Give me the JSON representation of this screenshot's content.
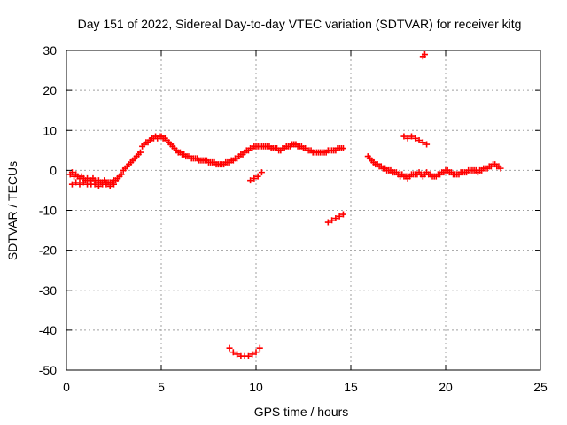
{
  "chart_data": {
    "type": "scatter",
    "title": "Day 151 of 2022, Sidereal Day-to-day VTEC variation (SDTVAR) for receiver kitg",
    "xlabel": "GPS time / hours",
    "ylabel": "SDTVAR / TECUs",
    "xlim": [
      0,
      25
    ],
    "ylim": [
      -50,
      30
    ],
    "xticks": [
      0,
      5,
      10,
      15,
      20,
      25
    ],
    "yticks": [
      -50,
      -40,
      -30,
      -20,
      -10,
      0,
      10,
      20,
      30
    ],
    "grid": true,
    "marker": "plus",
    "color": "#ff0000",
    "series": [
      {
        "name": "SDTVAR",
        "x": [
          0.2,
          0.3,
          0.4,
          0.5,
          0.6,
          0.7,
          0.8,
          0.9,
          1.0,
          1.1,
          1.2,
          1.3,
          1.4,
          1.5,
          1.6,
          1.7,
          1.8,
          1.9,
          2.0,
          2.1,
          2.2,
          2.3,
          2.4,
          2.5,
          2.6,
          2.7,
          2.8,
          2.9,
          3.0,
          3.1,
          3.2,
          3.3,
          3.4,
          3.5,
          3.6,
          3.7,
          3.8,
          3.9,
          4.0,
          4.1,
          4.2,
          4.3,
          4.4,
          4.5,
          4.6,
          4.7,
          4.8,
          4.9,
          5.0,
          5.1,
          5.2,
          5.3,
          5.4,
          5.5,
          5.6,
          5.7,
          5.8,
          5.9,
          6.0,
          6.1,
          6.2,
          6.3,
          6.4,
          6.5,
          6.6,
          6.7,
          6.8,
          6.9,
          7.0,
          7.1,
          7.2,
          7.3,
          7.4,
          7.5,
          7.6,
          7.7,
          7.8,
          7.9,
          8.0,
          8.1,
          8.2,
          8.3,
          8.4,
          8.5,
          8.6,
          8.7,
          8.8,
          8.9,
          9.0,
          9.1,
          9.2,
          9.3,
          9.4,
          9.5,
          9.6,
          9.7,
          9.8,
          9.9,
          10.0,
          10.1,
          10.2,
          10.3,
          10.4,
          10.5,
          10.6,
          10.7,
          10.8,
          10.9,
          11.0,
          11.1,
          11.2,
          11.3,
          11.4,
          11.5,
          11.6,
          11.7,
          11.8,
          11.9,
          12.0,
          12.1,
          12.2,
          12.3,
          12.4,
          12.5,
          12.6,
          12.7,
          12.8,
          12.9,
          13.0,
          13.1,
          13.2,
          13.3,
          13.4,
          13.5,
          13.6,
          13.7,
          13.8,
          13.9,
          14.0,
          14.1,
          14.2,
          14.3,
          14.4,
          14.5,
          14.6,
          15.9,
          16.0,
          16.1,
          16.2,
          16.3,
          16.4,
          16.5,
          16.6,
          16.7,
          16.8,
          16.9,
          17.0,
          17.1,
          17.2,
          17.3,
          17.4,
          17.5,
          17.6,
          17.7,
          17.8,
          17.9,
          18.0,
          18.1,
          18.2,
          18.3,
          18.4,
          18.5,
          18.6,
          18.7,
          18.8,
          18.9,
          19.0,
          19.1,
          19.2,
          19.3,
          19.4,
          19.5,
          19.6,
          19.7,
          19.8,
          19.9,
          20.0,
          20.1,
          20.2,
          20.3,
          20.4,
          20.5,
          20.6,
          20.7,
          20.8,
          20.9,
          21.0,
          21.1,
          21.2,
          21.3,
          21.4,
          21.5,
          21.6,
          21.7,
          21.8,
          21.9,
          22.0,
          22.1,
          22.2,
          22.3,
          22.4,
          22.5,
          22.6,
          22.7,
          22.8,
          22.9,
          0.3,
          0.5,
          0.7,
          0.9,
          1.1,
          1.3,
          1.5,
          1.7,
          1.9,
          2.1,
          2.3,
          2.5,
          16.0,
          16.4,
          16.8,
          17.2,
          17.6,
          18.0,
          8.6,
          8.8,
          9.0,
          9.2,
          9.4,
          9.6,
          9.8,
          10.0,
          10.2,
          9.7,
          9.9,
          10.1,
          10.3,
          13.8,
          14.0,
          14.2,
          14.4,
          14.6,
          17.8,
          18.0,
          18.2,
          18.4,
          18.6,
          18.8,
          19.0,
          18.8,
          18.9
        ],
        "y": [
          -1.0,
          -0.5,
          -1.5,
          -1.0,
          -1.5,
          -2.0,
          -1.5,
          -2.0,
          -2.5,
          -2.0,
          -2.5,
          -2.5,
          -2.0,
          -2.5,
          -3.0,
          -2.5,
          -3.0,
          -3.0,
          -2.5,
          -3.0,
          -3.0,
          -3.0,
          -3.0,
          -2.5,
          -2.5,
          -2.0,
          -1.5,
          -1.0,
          0.0,
          0.5,
          1.0,
          1.5,
          2.0,
          2.5,
          3.0,
          3.5,
          4.0,
          4.5,
          6.0,
          6.5,
          7.0,
          7.0,
          7.5,
          8.0,
          8.0,
          8.5,
          8.0,
          8.5,
          8.5,
          8.0,
          8.0,
          7.5,
          7.0,
          6.5,
          6.0,
          5.5,
          5.0,
          4.5,
          4.5,
          4.0,
          4.0,
          3.5,
          3.5,
          3.5,
          3.0,
          3.0,
          3.0,
          3.0,
          2.5,
          2.5,
          2.5,
          2.5,
          2.5,
          2.0,
          2.0,
          2.0,
          2.0,
          1.5,
          1.5,
          1.5,
          1.5,
          1.5,
          2.0,
          2.0,
          2.0,
          2.5,
          2.5,
          3.0,
          3.0,
          3.5,
          4.0,
          4.0,
          4.5,
          5.0,
          5.0,
          5.5,
          5.5,
          6.0,
          6.0,
          6.0,
          6.0,
          6.0,
          6.0,
          6.0,
          6.0,
          6.0,
          5.5,
          5.5,
          5.5,
          5.5,
          5.0,
          5.0,
          5.5,
          5.5,
          6.0,
          6.0,
          6.0,
          6.5,
          6.5,
          6.5,
          6.0,
          6.0,
          6.0,
          5.5,
          5.5,
          5.0,
          5.0,
          5.0,
          4.5,
          4.5,
          4.5,
          4.5,
          4.5,
          4.5,
          4.5,
          4.5,
          5.0,
          5.0,
          5.0,
          5.0,
          5.0,
          5.5,
          5.5,
          5.5,
          5.5,
          3.5,
          3.0,
          2.5,
          2.0,
          1.5,
          1.5,
          1.0,
          1.0,
          0.5,
          0.5,
          0.0,
          0.0,
          0.0,
          -0.5,
          -0.5,
          -0.5,
          -1.0,
          -1.0,
          -1.0,
          -1.5,
          -1.5,
          -1.5,
          -1.5,
          -1.0,
          -1.0,
          -1.0,
          -1.0,
          -0.5,
          -1.0,
          -1.5,
          -1.0,
          -0.5,
          -1.0,
          -1.0,
          -1.5,
          -1.5,
          -1.5,
          -1.0,
          -1.0,
          -0.5,
          -0.5,
          0.0,
          0.0,
          -0.5,
          -0.5,
          -1.0,
          -1.0,
          -1.0,
          -1.0,
          -0.5,
          -0.5,
          -0.5,
          -0.5,
          0.0,
          0.0,
          0.0,
          0.0,
          0.0,
          -0.5,
          0.0,
          0.0,
          0.5,
          0.5,
          0.5,
          1.0,
          1.0,
          1.5,
          1.5,
          1.0,
          1.0,
          0.5,
          -3.5,
          -3.0,
          -3.5,
          -3.0,
          -3.5,
          -3.5,
          -3.5,
          -4.0,
          -3.5,
          -3.5,
          -4.0,
          -3.5,
          3.0,
          1.5,
          0.5,
          -0.5,
          -1.5,
          -2.0,
          -44.5,
          -45.5,
          -46.0,
          -46.5,
          -46.5,
          -46.5,
          -46.0,
          -45.5,
          -44.5,
          -2.5,
          -2.0,
          -1.5,
          -0.5,
          -13.0,
          -12.5,
          -12.0,
          -11.5,
          -11.0,
          8.5,
          8.0,
          8.5,
          8.0,
          7.5,
          7.0,
          6.5,
          28.5,
          29.0
        ]
      }
    ]
  }
}
